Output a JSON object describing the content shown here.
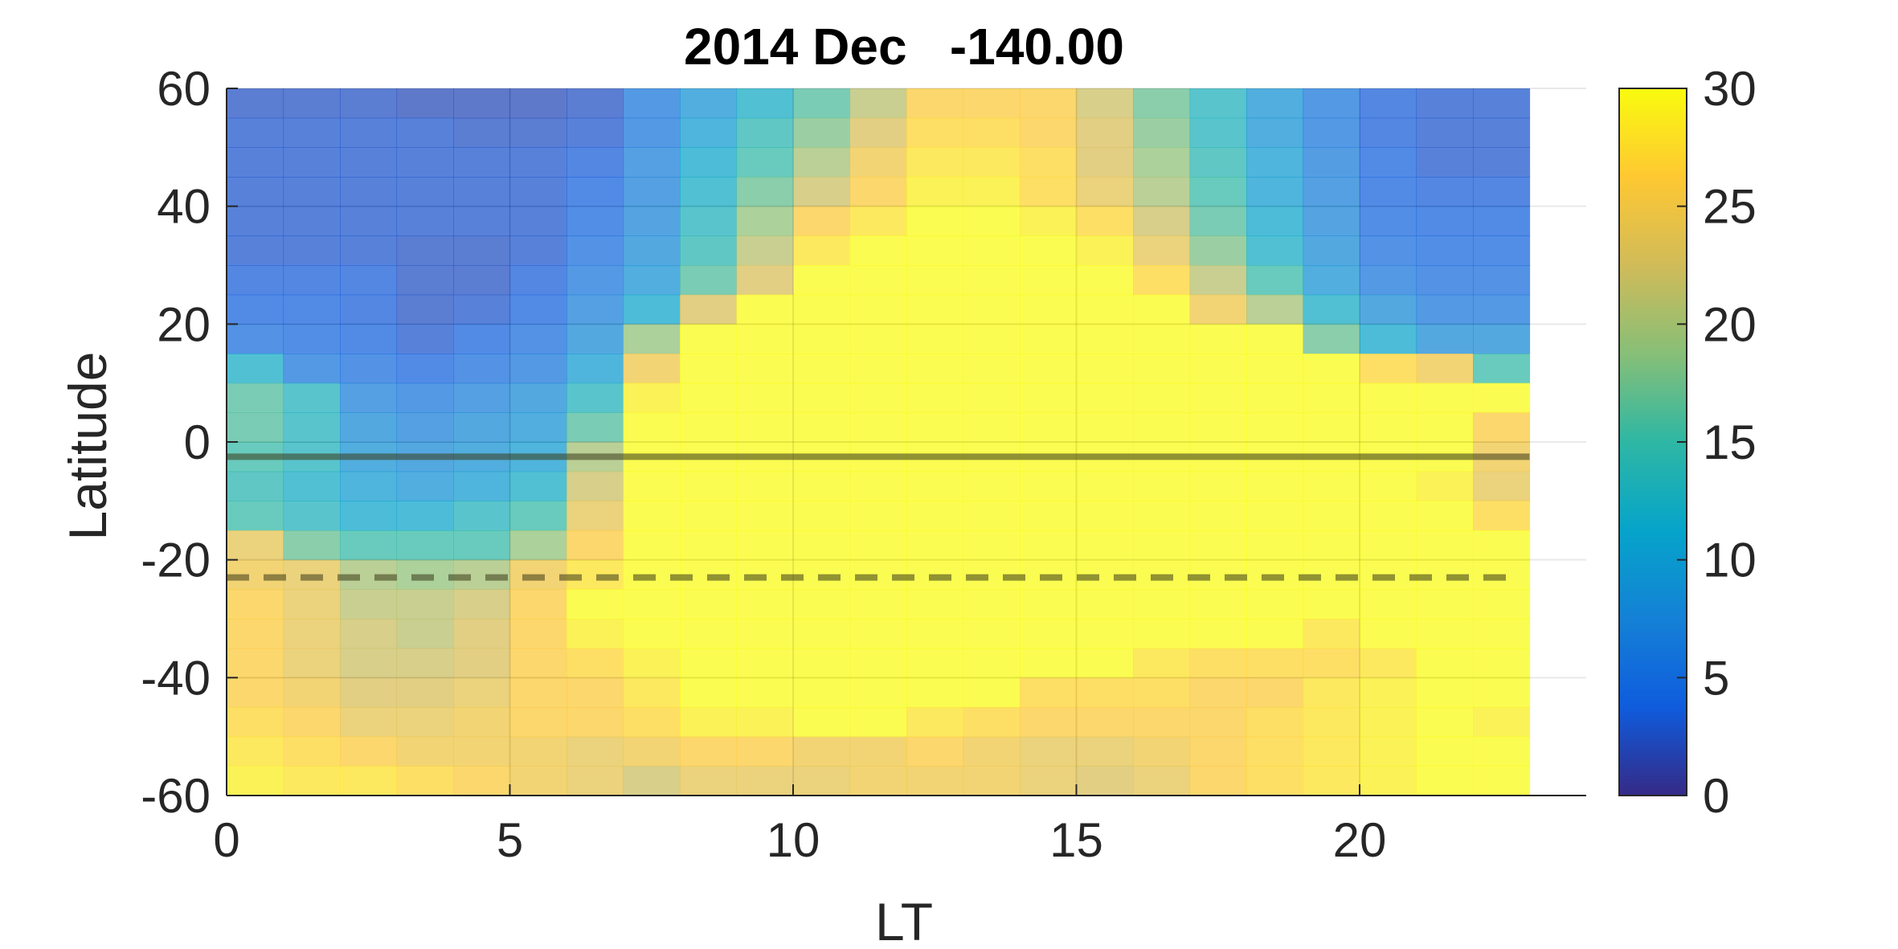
{
  "chart_data": {
    "type": "heatmap",
    "title": "2014 Dec   -140.00",
    "xlabel": "LT",
    "ylabel": "Latitude",
    "xlim": [
      0,
      24
    ],
    "ylim": [
      -60,
      60
    ],
    "x_ticks": [
      0,
      5,
      10,
      15,
      20
    ],
    "x_tick_labels": [
      "0",
      "5",
      "10",
      "15",
      "20"
    ],
    "y_ticks": [
      -60,
      -40,
      -20,
      0,
      20,
      40,
      60
    ],
    "y_tick_labels": [
      "-60",
      "-40",
      "-20",
      "0",
      "20",
      "40",
      "60"
    ],
    "grid": true,
    "colormap": "parula",
    "color_limits": [
      0,
      30
    ],
    "colorbar_ticks": [
      0,
      5,
      10,
      15,
      20,
      25,
      30
    ],
    "colorbar_tick_labels": [
      "0",
      "5",
      "10",
      "15",
      "20",
      "25",
      "30"
    ],
    "cell_width_hours": 1,
    "cell_height_degrees": 5,
    "lt_values": [
      0,
      1,
      2,
      3,
      4,
      5,
      6,
      7,
      8,
      9,
      10,
      11,
      12,
      13,
      14,
      15,
      16,
      17,
      18,
      19,
      20,
      21,
      22
    ],
    "latitude_values": [
      57.5,
      52.5,
      47.5,
      42.5,
      37.5,
      32.5,
      27.5,
      22.5,
      17.5,
      12.5,
      7.5,
      2.5,
      -2.5,
      -7.5,
      -12.5,
      -17.5,
      -22.5,
      -27.5,
      -32.5,
      -37.5,
      -42.5,
      -47.5,
      -52.5,
      -57.5
    ],
    "z_values": [
      [
        2.5,
        2.5,
        2.5,
        2.0,
        2.0,
        2.0,
        2.5,
        6,
        9,
        12,
        16,
        21,
        26,
        26,
        26,
        22,
        17,
        13,
        9,
        6,
        3.5,
        3,
        3
      ],
      [
        3,
        3,
        3,
        3,
        2.5,
        2.5,
        3,
        6,
        10,
        14,
        18,
        23,
        27,
        27,
        26,
        23,
        18,
        13,
        9,
        6,
        3.5,
        3,
        3
      ],
      [
        3,
        3,
        3,
        3,
        3,
        3,
        3.5,
        7,
        11,
        15,
        20,
        25,
        28,
        28,
        27,
        23,
        19,
        14,
        10,
        6.5,
        4,
        3,
        3
      ],
      [
        3,
        3,
        3,
        3,
        3,
        3,
        4,
        7,
        12,
        17,
        22,
        26,
        29,
        29,
        27,
        24,
        20,
        15,
        10,
        7,
        4,
        3.5,
        3.5
      ],
      [
        3,
        3,
        3,
        3,
        3,
        3,
        4.5,
        7.5,
        13,
        19,
        26,
        28,
        30,
        30,
        29,
        27,
        22,
        16,
        11,
        7.5,
        4.5,
        4,
        4
      ],
      [
        3,
        3,
        3,
        2.5,
        2.5,
        3,
        5,
        8,
        14,
        21,
        28,
        30,
        30,
        30,
        30,
        29,
        24,
        18,
        12,
        8,
        5,
        4.5,
        4.5
      ],
      [
        3.5,
        3.5,
        3.5,
        2.5,
        2.5,
        3.5,
        6,
        9,
        16,
        23,
        30,
        30,
        30,
        30,
        30,
        30,
        27,
        21,
        15,
        9,
        6,
        5,
        5
      ],
      [
        4,
        4,
        3.5,
        2.5,
        3,
        4,
        7,
        11,
        23,
        30,
        30,
        30,
        30,
        30,
        30,
        30,
        30,
        25,
        20,
        12,
        8,
        6,
        6
      ],
      [
        5,
        4.5,
        4,
        3,
        4,
        5,
        8,
        19,
        30,
        30,
        30,
        30,
        30,
        30,
        30,
        30,
        30,
        30,
        30,
        17,
        11,
        8,
        8
      ],
      [
        12,
        6,
        5,
        4,
        5,
        6,
        10,
        25,
        30,
        30,
        30,
        30,
        30,
        30,
        30,
        30,
        30,
        30,
        30,
        30,
        27,
        25,
        15
      ],
      [
        16,
        13,
        7,
        6,
        7,
        8,
        13,
        29,
        30,
        30,
        30,
        30,
        30,
        30,
        30,
        30,
        30,
        30,
        30,
        30,
        30,
        30,
        30
      ],
      [
        16,
        13,
        8,
        7,
        8,
        9,
        16,
        30,
        30,
        30,
        30,
        30,
        30,
        30,
        30,
        30,
        30,
        30,
        30,
        30,
        30,
        30,
        26
      ],
      [
        15,
        13,
        9,
        8,
        9,
        10,
        20,
        30,
        30,
        30,
        30,
        30,
        30,
        30,
        30,
        30,
        30,
        30,
        30,
        30,
        30,
        30,
        25
      ],
      [
        14,
        12,
        10,
        9,
        10,
        12,
        22,
        30,
        30,
        30,
        30,
        30,
        30,
        30,
        30,
        30,
        30,
        30,
        30,
        30,
        30,
        29,
        24
      ],
      [
        15,
        13,
        11,
        11,
        13,
        15,
        24,
        30,
        30,
        30,
        30,
        30,
        30,
        30,
        30,
        30,
        30,
        30,
        30,
        30,
        30,
        30,
        27
      ],
      [
        24,
        17,
        15,
        15,
        15,
        19,
        26,
        30,
        30,
        30,
        30,
        30,
        30,
        30,
        30,
        30,
        30,
        30,
        30,
        30,
        30,
        30,
        30
      ],
      [
        25,
        24,
        20,
        19,
        20,
        25,
        28,
        30,
        30,
        30,
        30,
        30,
        30,
        30,
        30,
        30,
        30,
        30,
        30,
        30,
        30,
        30,
        30
      ],
      [
        26,
        24,
        21,
        21,
        22,
        26,
        30,
        30,
        30,
        30,
        30,
        30,
        30,
        30,
        30,
        30,
        30,
        30,
        30,
        30,
        30,
        30,
        30
      ],
      [
        26,
        24,
        22,
        21,
        23,
        26,
        29,
        30,
        30,
        30,
        30,
        30,
        30,
        30,
        30,
        30,
        30,
        30,
        30,
        28,
        30,
        30,
        30
      ],
      [
        26,
        24,
        22,
        22,
        23,
        26,
        27,
        29,
        30,
        30,
        30,
        30,
        30,
        30,
        30,
        30,
        28,
        27,
        27,
        27,
        28,
        30,
        30
      ],
      [
        26,
        25,
        23,
        23,
        24,
        26,
        26,
        28,
        30,
        30,
        30,
        30,
        30,
        30,
        27,
        27,
        27,
        26,
        26,
        28,
        29,
        30,
        30
      ],
      [
        27,
        26,
        24,
        24,
        25,
        26,
        26,
        27,
        29,
        29,
        30,
        30,
        28,
        27,
        26,
        26,
        26,
        26,
        27,
        28,
        29,
        30,
        29
      ],
      [
        28,
        27,
        26,
        25,
        25,
        25,
        24,
        25,
        26,
        26,
        25,
        25,
        26,
        25,
        24,
        24,
        25,
        26,
        27,
        28,
        29,
        30,
        30
      ],
      [
        29,
        28,
        28,
        27,
        26,
        25,
        24,
        22,
        24,
        24,
        24,
        25,
        25,
        25,
        24,
        23,
        24,
        26,
        27,
        28,
        29,
        30,
        30
      ]
    ],
    "reference_lines": [
      {
        "latitude": -2.5,
        "style": "solid"
      },
      {
        "latitude": -23,
        "style": "dashed"
      }
    ]
  }
}
